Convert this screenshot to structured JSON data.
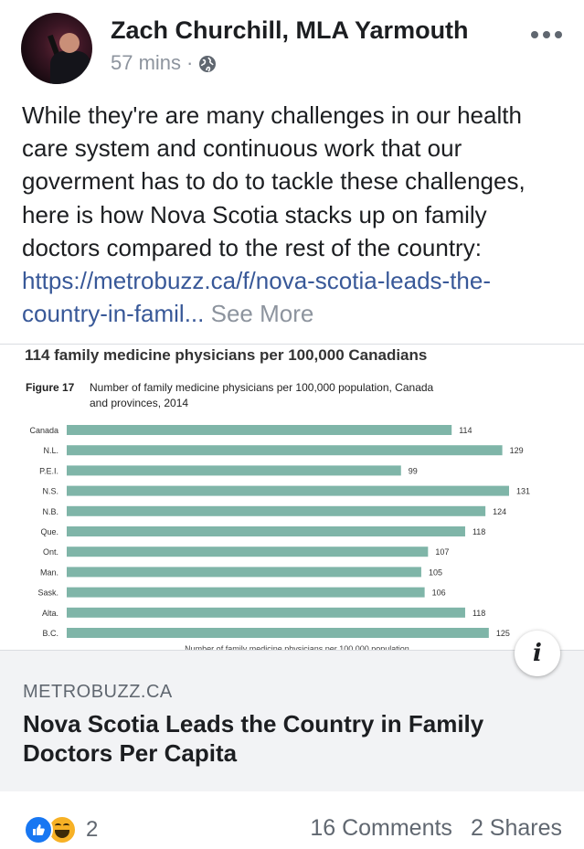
{
  "post": {
    "author": "Zach Churchill, MLA Yarmouth",
    "time": "57 mins",
    "separator": "·",
    "privacy_icon": "globe-icon",
    "text": "While they're are many challenges in our health care system and continuous work that our goverment has to do to tackle these challenges, here is how Nova Scotia stacks up on family doctors compared to the rest of the country: ",
    "link_text": "https://metrobuzz.ca/f/nova-scotia-leads-the-country-in-famil...",
    "see_more": "See More"
  },
  "link_card": {
    "domain": "METROBUZZ.CA",
    "title": "Nova Scotia Leads the Country in Family Doctors Per Capita",
    "info_icon": "i"
  },
  "chart_data": {
    "type": "bar",
    "orientation": "horizontal",
    "title": "114 family medicine physicians per 100,000 Canadians",
    "figure_label": "Figure 17",
    "subtitle_lines": [
      "Number of family medicine physicians per 100,000 population, Canada",
      "and provinces, 2014"
    ],
    "categories": [
      "Canada",
      "N.L.",
      "P.E.I.",
      "N.S.",
      "N.B.",
      "Que.",
      "Ont.",
      "Man.",
      "Sask.",
      "Alta.",
      "B.C."
    ],
    "values": [
      114,
      129,
      99,
      131,
      124,
      118,
      107,
      105,
      106,
      118,
      125
    ],
    "xlabel": "Number of family medicine physicians per 100,000 population",
    "bar_color": "#7fb5a8",
    "grid": false
  },
  "footer": {
    "reaction_icons": [
      "like-icon",
      "haha-icon"
    ],
    "reaction_count": "2",
    "comments": "16 Comments",
    "shares": "2 Shares"
  }
}
